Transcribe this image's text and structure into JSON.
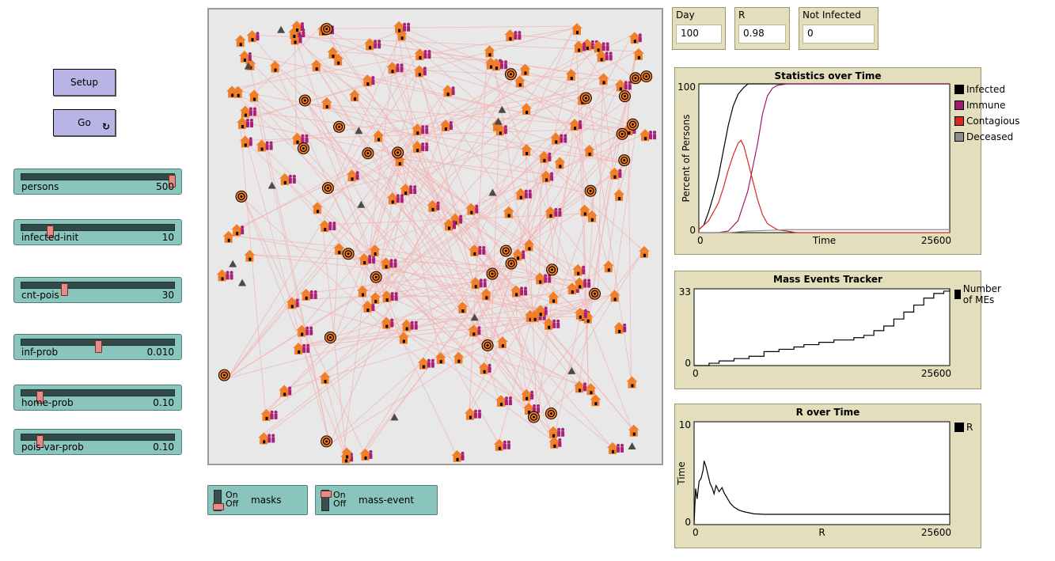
{
  "buttons": {
    "setup_label": "Setup",
    "go_label": "Go",
    "go_icon": "forever-icon"
  },
  "sliders": [
    {
      "name": "persons",
      "value": "500",
      "fraction": 1.0
    },
    {
      "name": "infected-init",
      "value": "10",
      "fraction": 0.17
    },
    {
      "name": "cnt-pois",
      "value": "30",
      "fraction": 0.27
    },
    {
      "name": "inf-prob",
      "value": "0.010",
      "fraction": 0.5
    },
    {
      "name": "home-prob",
      "value": "0.10",
      "fraction": 0.1
    },
    {
      "name": "pois-var-prob",
      "value": "0.10",
      "fraction": 0.1
    }
  ],
  "switches": [
    {
      "name": "masks",
      "on": "On",
      "off": "Off",
      "state": "off"
    },
    {
      "name": "mass-event",
      "on": "On",
      "off": "Off",
      "state": "on"
    }
  ],
  "monitors": {
    "day_label": "Day",
    "day_value": "100",
    "r_label": "R",
    "r_value": "0.98",
    "not_infected_label": "Not Infected",
    "not_infected_value": "0"
  },
  "colors": {
    "button_bg": "#b8b4e6",
    "widget_teal": "#89c4bd",
    "plot_bg": "#e3dfbd",
    "house": "#f07d27",
    "person": "#a8207a",
    "link": "#f2b5b5"
  },
  "chart_data": [
    {
      "type": "line",
      "title": "Statistics over Time",
      "xlabel": "Time",
      "ylabel": "Percent of Persons",
      "xlim": [
        0,
        25600
      ],
      "ylim": [
        0,
        100
      ],
      "x_tick_labels": [
        "0",
        "25600"
      ],
      "y_tick_labels": [
        "0",
        "100"
      ],
      "legend_position": "right",
      "series": [
        {
          "name": "Infected",
          "color": "#000000",
          "points": [
            [
              0,
              2
            ],
            [
              500,
              5
            ],
            [
              1000,
              14
            ],
            [
              1500,
              25
            ],
            [
              2000,
              38
            ],
            [
              2500,
              55
            ],
            [
              3000,
              72
            ],
            [
              3500,
              85
            ],
            [
              4000,
              93
            ],
            [
              4500,
              97
            ],
            [
              5000,
              100
            ],
            [
              6000,
              100
            ],
            [
              25600,
              100
            ]
          ]
        },
        {
          "name": "Immune",
          "color": "#9e1a6b",
          "points": [
            [
              0,
              0
            ],
            [
              2000,
              0
            ],
            [
              3000,
              1
            ],
            [
              4000,
              8
            ],
            [
              5000,
              28
            ],
            [
              6000,
              60
            ],
            [
              6500,
              80
            ],
            [
              7000,
              92
            ],
            [
              7500,
              97
            ],
            [
              8000,
              99
            ],
            [
              9000,
              100
            ],
            [
              25600,
              100
            ]
          ]
        },
        {
          "name": "Contagious",
          "color": "#d7291f",
          "points": [
            [
              0,
              2
            ],
            [
              1000,
              8
            ],
            [
              2000,
              20
            ],
            [
              2500,
              30
            ],
            [
              3000,
              42
            ],
            [
              3500,
              52
            ],
            [
              4000,
              60
            ],
            [
              4300,
              62
            ],
            [
              4600,
              58
            ],
            [
              5000,
              48
            ],
            [
              5500,
              35
            ],
            [
              6000,
              22
            ],
            [
              6500,
              12
            ],
            [
              7000,
              6
            ],
            [
              8000,
              2
            ],
            [
              9000,
              1
            ],
            [
              10000,
              0
            ],
            [
              25600,
              0
            ]
          ]
        },
        {
          "name": "Deceased",
          "color": "#8c8c8c",
          "points": [
            [
              0,
              0
            ],
            [
              3000,
              0
            ],
            [
              5000,
              1
            ],
            [
              7000,
              1.5
            ],
            [
              9000,
              2
            ],
            [
              25600,
              2
            ]
          ]
        }
      ]
    },
    {
      "type": "line",
      "title": "Mass Events Tracker",
      "xlim": [
        0,
        25600
      ],
      "ylim": [
        0,
        33
      ],
      "x_tick_labels": [
        "0",
        "25600"
      ],
      "y_tick_labels": [
        "0",
        "33"
      ],
      "legend_position": "right",
      "series": [
        {
          "name": "Number of MEs",
          "color": "#000000",
          "step": true,
          "points": [
            [
              0,
              0
            ],
            [
              1500,
              1
            ],
            [
              2500,
              2
            ],
            [
              4000,
              3
            ],
            [
              5500,
              4
            ],
            [
              7000,
              6
            ],
            [
              8500,
              7
            ],
            [
              10000,
              8
            ],
            [
              11000,
              9
            ],
            [
              12500,
              10
            ],
            [
              14000,
              11
            ],
            [
              15000,
              11
            ],
            [
              16000,
              12
            ],
            [
              17000,
              13
            ],
            [
              18000,
              15
            ],
            [
              19000,
              17
            ],
            [
              20000,
              20
            ],
            [
              21000,
              23
            ],
            [
              22000,
              26
            ],
            [
              23000,
              29
            ],
            [
              24000,
              31
            ],
            [
              25000,
              32
            ],
            [
              25600,
              33
            ]
          ]
        }
      ]
    },
    {
      "type": "line",
      "title": "R over Time",
      "xlabel": "R",
      "ylabel": "Time",
      "xlim": [
        0,
        25600
      ],
      "ylim": [
        0,
        10
      ],
      "x_tick_labels": [
        "0",
        "25600"
      ],
      "y_tick_labels": [
        "0",
        "10"
      ],
      "legend_position": "right",
      "series": [
        {
          "name": "R",
          "color": "#000000",
          "points": [
            [
              0,
              0
            ],
            [
              150,
              3.5
            ],
            [
              300,
              2.5
            ],
            [
              500,
              4.2
            ],
            [
              700,
              4.5
            ],
            [
              900,
              5.3
            ],
            [
              1000,
              6.2
            ],
            [
              1200,
              5.6
            ],
            [
              1400,
              4.8
            ],
            [
              1600,
              4.0
            ],
            [
              1800,
              3.6
            ],
            [
              2000,
              3.0
            ],
            [
              2200,
              3.8
            ],
            [
              2500,
              3.2
            ],
            [
              2800,
              3.6
            ],
            [
              3000,
              3.1
            ],
            [
              3300,
              2.6
            ],
            [
              3600,
              2.1
            ],
            [
              4000,
              1.7
            ],
            [
              4500,
              1.4
            ],
            [
              5000,
              1.25
            ],
            [
              6000,
              1.05
            ],
            [
              7000,
              1.0
            ],
            [
              25600,
              1.0
            ]
          ]
        }
      ]
    }
  ]
}
